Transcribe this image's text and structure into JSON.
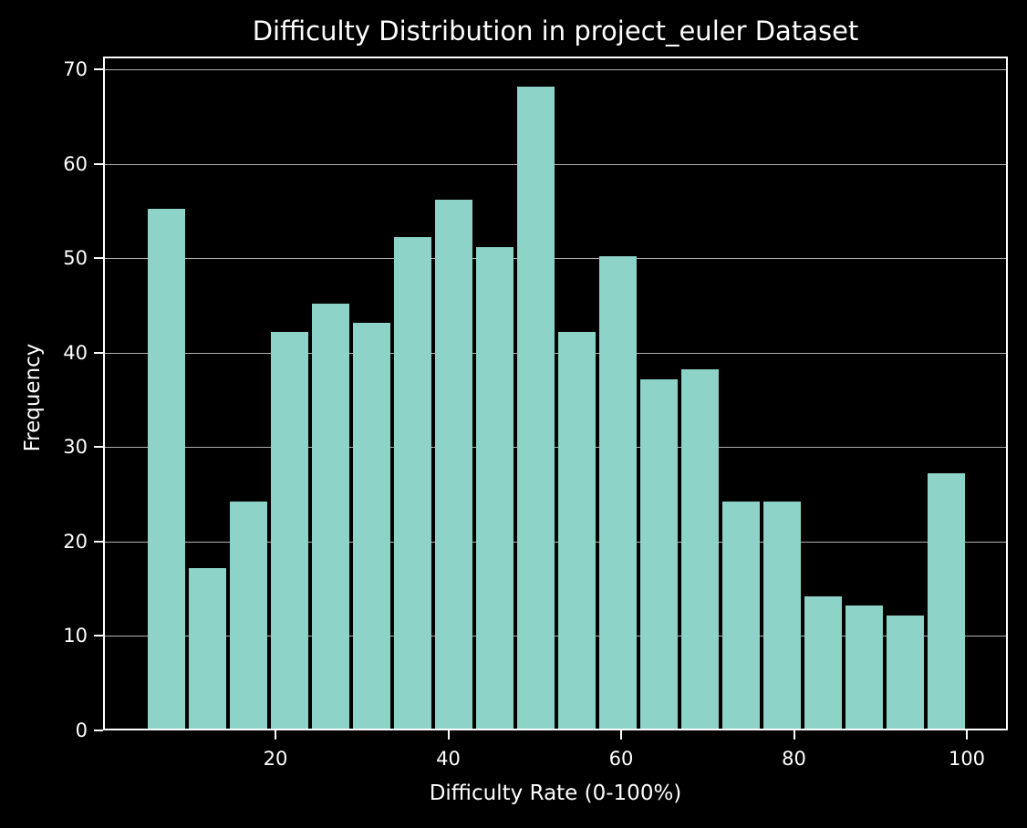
{
  "chart_data": {
    "type": "bar",
    "title": "Difficulty Distribution in project_euler Dataset",
    "xlabel": "Difficulty Rate (0-100%)",
    "ylabel": "Frequency",
    "xlim": [
      0,
      105
    ],
    "ylim": [
      0,
      71.4
    ],
    "grid": "y",
    "bar_color": "#8dd3c7",
    "background": "#000000",
    "x_ticks": [
      20,
      40,
      60,
      80,
      100
    ],
    "y_ticks": [
      0,
      10,
      20,
      30,
      40,
      50,
      60,
      70
    ],
    "bin_edges": [
      5,
      9.75,
      14.5,
      19.25,
      24,
      28.75,
      33.5,
      38.25,
      43,
      47.75,
      52.5,
      57.25,
      62,
      66.75,
      71.5,
      76.25,
      81,
      85.75,
      90.5,
      95.25,
      100
    ],
    "values": [
      55,
      17,
      24,
      42,
      45,
      43,
      52,
      56,
      51,
      68,
      42,
      50,
      37,
      38,
      24,
      24,
      14,
      13,
      12,
      27
    ]
  }
}
